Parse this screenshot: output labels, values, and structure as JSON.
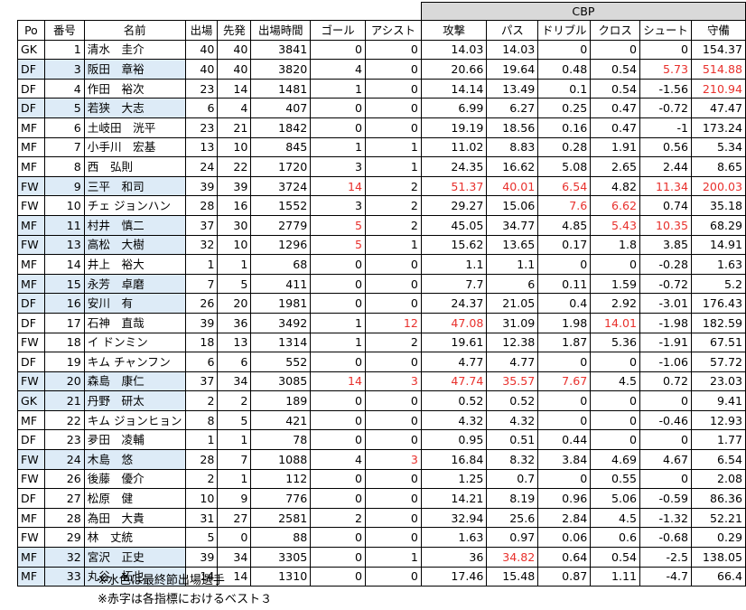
{
  "group_header": "CBP",
  "headers": [
    "Po",
    "番号",
    "名前",
    "出場",
    "先発",
    "出場時間",
    "ゴール",
    "アシスト",
    "攻撃",
    "パス",
    "ドリブル",
    "クロス",
    "シュート",
    "守備"
  ],
  "rows": [
    {
      "cells": [
        "GK",
        "1",
        "清水　圭介",
        "40",
        "40",
        "3841",
        "0",
        "0",
        "14.03",
        "14.03",
        "0",
        "0",
        "0",
        "154.37"
      ],
      "blue": false,
      "red": []
    },
    {
      "cells": [
        "DF",
        "3",
        "阪田　章裕",
        "40",
        "40",
        "3820",
        "4",
        "0",
        "20.66",
        "19.64",
        "0.48",
        "0.54",
        "5.73",
        "514.88"
      ],
      "blue": true,
      "red": [
        12,
        13
      ]
    },
    {
      "cells": [
        "DF",
        "4",
        "作田　裕次",
        "23",
        "14",
        "1481",
        "1",
        "0",
        "14.14",
        "13.49",
        "0.1",
        "0.54",
        "-1.56",
        "210.94"
      ],
      "blue": false,
      "red": [
        13
      ]
    },
    {
      "cells": [
        "DF",
        "5",
        "若狭　大志",
        "6",
        "4",
        "407",
        "0",
        "0",
        "6.99",
        "6.27",
        "0.25",
        "0.47",
        "-0.72",
        "47.47"
      ],
      "blue": true,
      "red": []
    },
    {
      "cells": [
        "MF",
        "6",
        "土岐田　洸平",
        "23",
        "21",
        "1842",
        "0",
        "0",
        "19.19",
        "18.56",
        "0.16",
        "0.47",
        "-1",
        "173.24"
      ],
      "blue": false,
      "red": []
    },
    {
      "cells": [
        "MF",
        "7",
        "小手川　宏基",
        "13",
        "10",
        "845",
        "1",
        "1",
        "11.02",
        "8.83",
        "0.28",
        "1.91",
        "0.56",
        "5.34"
      ],
      "blue": false,
      "red": []
    },
    {
      "cells": [
        "MF",
        "8",
        "西　弘則",
        "24",
        "22",
        "1720",
        "3",
        "1",
        "24.35",
        "16.62",
        "5.08",
        "2.65",
        "2.44",
        "8.65"
      ],
      "blue": false,
      "red": []
    },
    {
      "cells": [
        "FW",
        "9",
        "三平　和司",
        "39",
        "39",
        "3724",
        "14",
        "2",
        "51.37",
        "40.01",
        "6.54",
        "4.82",
        "11.34",
        "200.03"
      ],
      "blue": true,
      "red": [
        6,
        8,
        9,
        10,
        12,
        13
      ]
    },
    {
      "cells": [
        "FW",
        "10",
        "チェ ジョンハン",
        "28",
        "16",
        "1552",
        "3",
        "2",
        "29.27",
        "15.06",
        "7.6",
        "6.62",
        "0.74",
        "35.18"
      ],
      "blue": false,
      "red": [
        10,
        11
      ]
    },
    {
      "cells": [
        "MF",
        "11",
        "村井　慎二",
        "37",
        "30",
        "2779",
        "5",
        "2",
        "45.05",
        "34.77",
        "4.85",
        "5.43",
        "10.35",
        "68.29"
      ],
      "blue": true,
      "red": [
        6,
        11,
        12
      ]
    },
    {
      "cells": [
        "FW",
        "13",
        "高松　大樹",
        "32",
        "10",
        "1296",
        "5",
        "1",
        "15.62",
        "13.65",
        "0.17",
        "1.8",
        "3.85",
        "14.91"
      ],
      "blue": true,
      "red": [
        6
      ]
    },
    {
      "cells": [
        "MF",
        "14",
        "井上　裕大",
        "1",
        "1",
        "68",
        "0",
        "0",
        "1.1",
        "1.1",
        "0",
        "0",
        "-0.28",
        "1.63"
      ],
      "blue": false,
      "red": []
    },
    {
      "cells": [
        "MF",
        "15",
        "永芳　卓磨",
        "7",
        "5",
        "411",
        "0",
        "0",
        "7.7",
        "6",
        "0.11",
        "1.59",
        "-0.72",
        "5.2"
      ],
      "blue": true,
      "red": []
    },
    {
      "cells": [
        "DF",
        "16",
        "安川　有",
        "26",
        "20",
        "1981",
        "0",
        "0",
        "24.37",
        "21.05",
        "0.4",
        "2.92",
        "-3.01",
        "176.43"
      ],
      "blue": true,
      "red": []
    },
    {
      "cells": [
        "DF",
        "17",
        "石神　直哉",
        "39",
        "36",
        "3492",
        "1",
        "12",
        "47.08",
        "31.09",
        "1.98",
        "14.01",
        "-1.98",
        "182.59"
      ],
      "blue": false,
      "red": [
        7,
        8,
        11
      ]
    },
    {
      "cells": [
        "FW",
        "18",
        "イ ドンミン",
        "18",
        "13",
        "1314",
        "1",
        "2",
        "19.61",
        "12.38",
        "1.87",
        "5.36",
        "-1.91",
        "67.51"
      ],
      "blue": false,
      "red": []
    },
    {
      "cells": [
        "DF",
        "19",
        "キム チャンフン",
        "6",
        "6",
        "552",
        "0",
        "0",
        "4.77",
        "4.77",
        "0",
        "0",
        "-1.06",
        "57.72"
      ],
      "blue": false,
      "red": []
    },
    {
      "cells": [
        "FW",
        "20",
        "森島　康仁",
        "37",
        "34",
        "3085",
        "14",
        "3",
        "47.74",
        "35.57",
        "7.67",
        "4.5",
        "0.72",
        "23.03"
      ],
      "blue": true,
      "red": [
        6,
        7,
        8,
        9,
        10
      ]
    },
    {
      "cells": [
        "GK",
        "21",
        "丹野　研太",
        "2",
        "2",
        "189",
        "0",
        "0",
        "0.52",
        "0.52",
        "0",
        "0",
        "0",
        "9.41"
      ],
      "blue": true,
      "red": []
    },
    {
      "cells": [
        "MF",
        "22",
        "キム ジョンヒョン",
        "8",
        "5",
        "421",
        "0",
        "0",
        "4.32",
        "4.32",
        "0",
        "0",
        "-0.46",
        "12.93"
      ],
      "blue": false,
      "red": []
    },
    {
      "cells": [
        "DF",
        "23",
        "夛田　凌輔",
        "1",
        "1",
        "78",
        "0",
        "0",
        "0.95",
        "0.51",
        "0.44",
        "0",
        "0",
        "1.77"
      ],
      "blue": false,
      "red": []
    },
    {
      "cells": [
        "FW",
        "24",
        "木島　悠",
        "28",
        "7",
        "1088",
        "4",
        "3",
        "16.84",
        "8.32",
        "3.84",
        "4.69",
        "4.67",
        "6.54"
      ],
      "blue": true,
      "red": [
        7
      ]
    },
    {
      "cells": [
        "FW",
        "26",
        "後藤　優介",
        "2",
        "1",
        "112",
        "0",
        "0",
        "1.25",
        "0.7",
        "0",
        "0.55",
        "0",
        "2.08"
      ],
      "blue": false,
      "red": []
    },
    {
      "cells": [
        "DF",
        "27",
        "松原　健",
        "10",
        "9",
        "776",
        "0",
        "0",
        "14.21",
        "8.19",
        "0.96",
        "5.06",
        "-0.59",
        "86.36"
      ],
      "blue": false,
      "red": []
    },
    {
      "cells": [
        "MF",
        "28",
        "為田　大貴",
        "31",
        "27",
        "2581",
        "2",
        "0",
        "32.94",
        "25.6",
        "2.84",
        "4.5",
        "-1.32",
        "52.21"
      ],
      "blue": false,
      "red": []
    },
    {
      "cells": [
        "FW",
        "29",
        "林　丈統",
        "5",
        "0",
        "88",
        "0",
        "0",
        "1.63",
        "0.97",
        "0.06",
        "0.6",
        "-0.68",
        "0.29"
      ],
      "blue": false,
      "red": []
    },
    {
      "cells": [
        "MF",
        "32",
        "宮沢　正史",
        "39",
        "34",
        "3305",
        "0",
        "1",
        "36",
        "34.82",
        "0.64",
        "0.54",
        "-2.5",
        "138.05"
      ],
      "blue": true,
      "red": [
        9
      ]
    },
    {
      "cells": [
        "MF",
        "33",
        "丸谷　拓也",
        "14",
        "14",
        "1310",
        "0",
        "0",
        "17.46",
        "15.48",
        "0.87",
        "1.11",
        "-4.7",
        "66.4"
      ],
      "blue": true,
      "red": []
    }
  ],
  "notes": [
    "※水色は最終節出場選手",
    "※赤字は各指標におけるベスト３"
  ]
}
